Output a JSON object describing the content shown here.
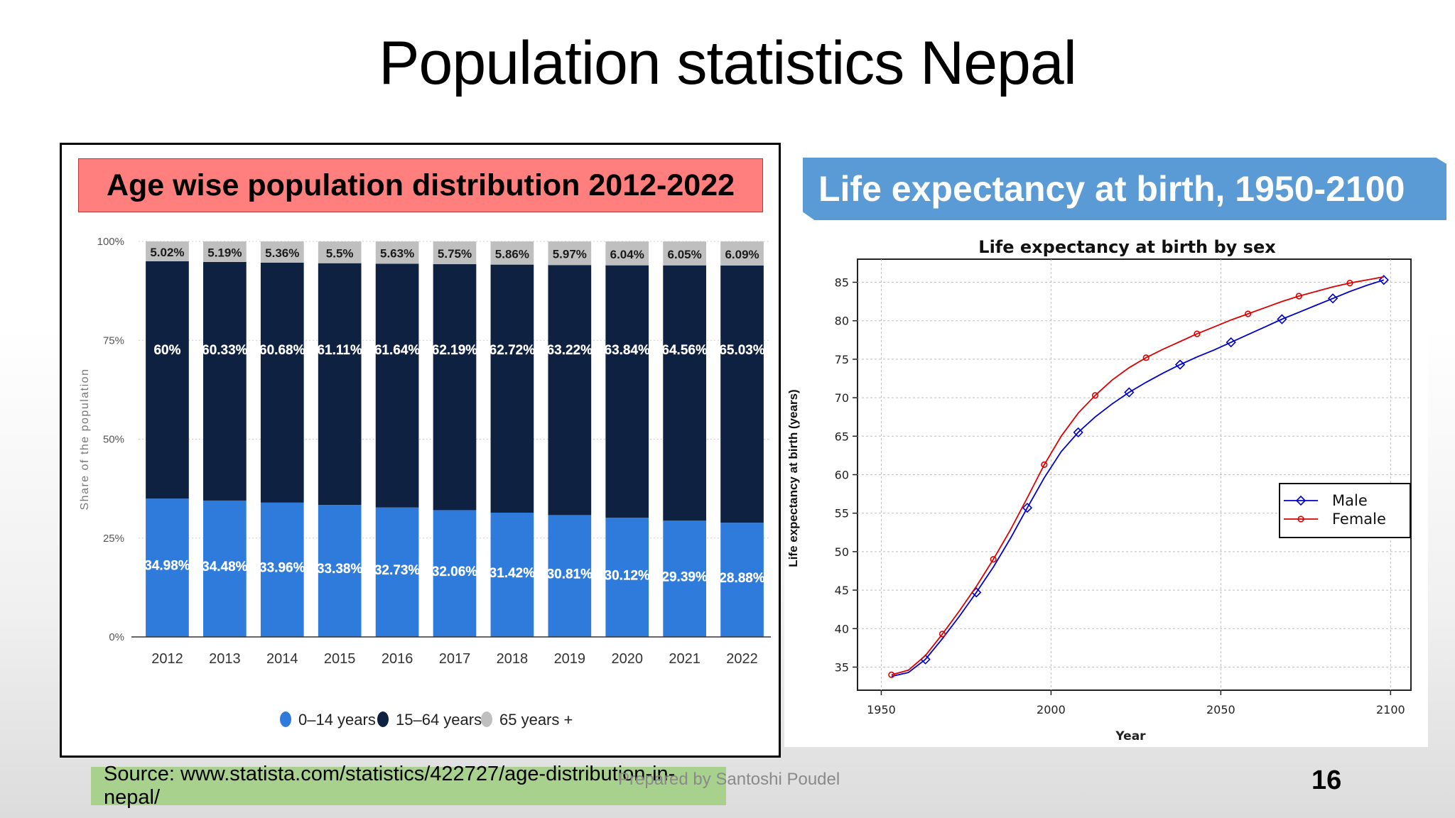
{
  "slide": {
    "title": "Population statistics Nepal",
    "source": "Source: www.statista.com/statistics/422727/age-distribution-in-nepal/",
    "prepared_by": "Prepared by Santoshi Poudel",
    "page_number": "16"
  },
  "left_panel": {
    "title": "Age wise population distribution 2012-2022"
  },
  "right_panel": {
    "title": "Life expectancy at birth, 1950-2100"
  },
  "chart_data": [
    {
      "type": "bar",
      "stacked": true,
      "ylabel": "Share of the population",
      "yticks": [
        "0%",
        "25%",
        "50%",
        "75%",
        "100%"
      ],
      "ylim": [
        0,
        100
      ],
      "categories": [
        "2012",
        "2013",
        "2014",
        "2015",
        "2016",
        "2017",
        "2018",
        "2019",
        "2020",
        "2021",
        "2022"
      ],
      "series": [
        {
          "name": "0-14 years",
          "color": "#2f7bdc",
          "values": [
            34.98,
            34.48,
            33.96,
            33.38,
            32.73,
            32.06,
            31.42,
            30.81,
            30.12,
            29.39,
            28.88
          ],
          "labels": [
            "34.98%",
            "34.48%",
            "33.96%",
            "33.38%",
            "32.73%",
            "32.06%",
            "31.42%",
            "30.81%",
            "30.12%",
            "29.39%",
            "28.88%"
          ]
        },
        {
          "name": "15-64 years",
          "color": "#0f2140",
          "values": [
            60,
            60.33,
            60.68,
            61.11,
            61.64,
            62.19,
            62.72,
            63.22,
            63.84,
            64.56,
            65.03
          ],
          "labels": [
            "60%",
            "60.33%",
            "60.68%",
            "61.11%",
            "61.64%",
            "62.19%",
            "62.72%",
            "63.22%",
            "63.84%",
            "64.56%",
            "65.03%"
          ]
        },
        {
          "name": "65 years +",
          "color": "#bfbfbf",
          "values": [
            5.02,
            5.19,
            5.36,
            5.5,
            5.63,
            5.75,
            5.86,
            5.97,
            6.04,
            6.05,
            6.09
          ],
          "labels": [
            "5.02%",
            "5.19%",
            "5.36%",
            "5.5%",
            "5.63%",
            "5.75%",
            "5.86%",
            "5.97%",
            "6.04%",
            "6.05%",
            "6.09%"
          ]
        }
      ],
      "legend": [
        "0–14 years",
        "15–64 years",
        "65 years +"
      ],
      "legend_position": "bottom",
      "grid": true
    },
    {
      "type": "line",
      "title": "Life expectancy at birth by sex",
      "xlabel": "Year",
      "ylabel": "Life expectancy at birth (years)",
      "xlim": [
        1943,
        2106
      ],
      "ylim": [
        32,
        88
      ],
      "xticks": [
        1950,
        2000,
        2050,
        2100
      ],
      "yticks": [
        35,
        40,
        45,
        50,
        55,
        60,
        65,
        70,
        75,
        80,
        85
      ],
      "grid": true,
      "legend_position": "right",
      "x": [
        1953,
        1958,
        1963,
        1968,
        1973,
        1978,
        1983,
        1988,
        1993,
        1998,
        2003,
        2008,
        2013,
        2018,
        2023,
        2028,
        2033,
        2038,
        2043,
        2048,
        2053,
        2058,
        2063,
        2068,
        2073,
        2078,
        2083,
        2088,
        2093,
        2098
      ],
      "series": [
        {
          "name": "Male",
          "color": "#0000cc",
          "marker": "diamond",
          "marker_every": 3,
          "marker_offset": 2,
          "values": [
            33.8,
            34.3,
            36.0,
            38.7,
            41.6,
            44.7,
            48.0,
            51.7,
            55.7,
            59.6,
            63.0,
            65.5,
            67.5,
            69.2,
            70.7,
            72.0,
            73.2,
            74.3,
            75.3,
            76.2,
            77.2,
            78.2,
            79.2,
            80.2,
            81.1,
            82.0,
            82.9,
            83.8,
            84.6,
            85.3
          ]
        },
        {
          "name": "Female",
          "color": "#dd0000",
          "marker": "circle",
          "marker_every": 3,
          "marker_offset": 0,
          "values": [
            34.0,
            34.6,
            36.5,
            39.3,
            42.3,
            45.5,
            49.0,
            52.8,
            57.0,
            61.3,
            65.0,
            68.0,
            70.3,
            72.3,
            73.9,
            75.2,
            76.3,
            77.3,
            78.3,
            79.2,
            80.1,
            80.9,
            81.7,
            82.5,
            83.2,
            83.8,
            84.4,
            84.9,
            85.3,
            85.7
          ]
        }
      ]
    }
  ]
}
